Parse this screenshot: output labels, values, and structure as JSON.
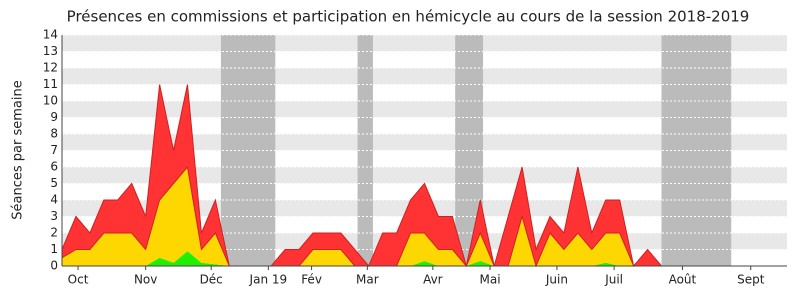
{
  "chart_data": {
    "type": "stacked_area",
    "title": "Présences en commissions et participation en hémicycle au cours de la session 2018-2019",
    "y_label": "Séances par semaine",
    "x": [
      0,
      1,
      2,
      3,
      4,
      5,
      6,
      7,
      8,
      9,
      10,
      11,
      12,
      13,
      14,
      15,
      16,
      17,
      18,
      19,
      20,
      21,
      22,
      23,
      24,
      25,
      26,
      27,
      28,
      29,
      30,
      31,
      32,
      33,
      34,
      35,
      36,
      37,
      38,
      39,
      40,
      41,
      42,
      43,
      44,
      45,
      46,
      47,
      48,
      49,
      50,
      51,
      52
    ],
    "series": [
      {
        "color": "#22ee00",
        "values": [
          0,
          0,
          0,
          0,
          0,
          0,
          0,
          0.5,
          0.2,
          0.9,
          0.2,
          0.1,
          0,
          0,
          0,
          0,
          0,
          0,
          0,
          0,
          0,
          0,
          0,
          0,
          0,
          0,
          0.3,
          0,
          0,
          0,
          0.3,
          0,
          0,
          0,
          0,
          0,
          0,
          0,
          0,
          0.2,
          0,
          0,
          0,
          0,
          0,
          0,
          0,
          0,
          0,
          0,
          0,
          0,
          0
        ]
      },
      {
        "color": "#ffd700",
        "values": [
          0.5,
          1,
          1,
          2,
          2,
          2,
          1,
          3.5,
          4.8,
          5.1,
          0.8,
          1.9,
          0,
          0,
          0,
          0,
          0,
          0,
          1,
          1,
          1,
          0,
          0,
          0,
          0,
          2,
          1.7,
          1,
          1,
          0,
          1.7,
          0,
          0,
          3,
          0,
          2,
          1,
          2,
          1,
          1.8,
          2,
          0,
          0,
          0,
          0,
          0,
          0,
          0,
          0,
          0,
          0,
          0,
          0
        ]
      },
      {
        "color": "#ff3333",
        "values": [
          0.5,
          2,
          1,
          2,
          2,
          3,
          2,
          7,
          2,
          5,
          1,
          2,
          0,
          0,
          0,
          0,
          1,
          1,
          1,
          1,
          1,
          1,
          0,
          2,
          2,
          2,
          3,
          2,
          2,
          0,
          2,
          0,
          3,
          3,
          1,
          1,
          1,
          4,
          1,
          2,
          2,
          0,
          1,
          0,
          0,
          0,
          0,
          0,
          0,
          0,
          0,
          0,
          0
        ]
      }
    ],
    "shaded_ranges": [
      [
        11.4,
        15.3
      ],
      [
        21.2,
        22.3
      ],
      [
        28.2,
        30.2
      ],
      [
        43,
        48
      ]
    ],
    "xlim": [
      0,
      52
    ],
    "ylim": [
      0,
      14
    ],
    "yticks": [
      0,
      1,
      2,
      3,
      4,
      5,
      6,
      7,
      8,
      9,
      10,
      11,
      12,
      13,
      14
    ],
    "xticks": [
      {
        "value": 1.15,
        "label": "Oct"
      },
      {
        "value": 6,
        "label": "Nov"
      },
      {
        "value": 10.7,
        "label": "Déc"
      },
      {
        "value": 14.8,
        "label": "Jan 19"
      },
      {
        "value": 17.9,
        "label": "Fév"
      },
      {
        "value": 21.9,
        "label": "Mar"
      },
      {
        "value": 26.6,
        "label": "Avr"
      },
      {
        "value": 30.7,
        "label": "Mai"
      },
      {
        "value": 35.5,
        "label": "Juin"
      },
      {
        "value": 39.6,
        "label": "Juil"
      },
      {
        "value": 44.5,
        "label": "Août"
      },
      {
        "value": 49.4,
        "label": "Sept"
      }
    ],
    "grid": true
  }
}
